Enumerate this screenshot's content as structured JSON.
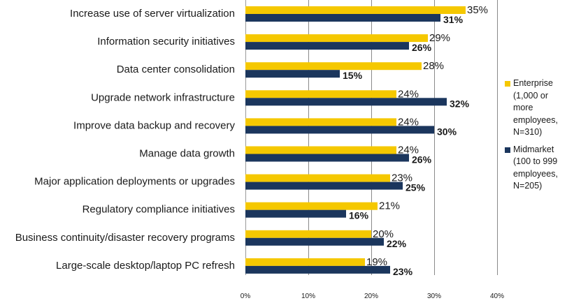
{
  "chart_data": {
    "type": "bar",
    "orientation": "horizontal",
    "categories": [
      "Increase use of server virtualization",
      "Information security initiatives",
      "Data center consolidation",
      "Upgrade network infrastructure",
      "Improve data backup and recovery",
      "Manage data growth",
      "Major application deployments or upgrades",
      "Regulatory compliance initiatives",
      "Business continuity/disaster recovery programs",
      "Large-scale desktop/laptop PC refresh"
    ],
    "series": [
      {
        "name": "Enterprise (1,000 or more employees, N=310)",
        "legend_lines": [
          "Enterprise",
          "(1,000 or",
          "more",
          "employees,",
          "N=310)"
        ],
        "color": "#F5C800",
        "values": [
          35,
          29,
          28,
          24,
          24,
          24,
          23,
          21,
          20,
          19
        ],
        "labels": [
          "35%",
          "29%",
          "28%",
          "24%",
          "24%",
          "24%",
          "23%",
          "21%",
          "20%",
          "19%"
        ]
      },
      {
        "name": "Midmarket (100 to 999 employees, N=205)",
        "legend_lines": [
          "Midmarket",
          "(100 to 999",
          "employees,",
          "N=205)"
        ],
        "color": "#1B365D",
        "values": [
          31,
          26,
          15,
          32,
          30,
          26,
          25,
          16,
          22,
          23
        ],
        "labels": [
          "31%",
          "26%",
          "15%",
          "32%",
          "30%",
          "26%",
          "25%",
          "16%",
          "22%",
          "23%"
        ]
      }
    ],
    "xlim": [
      0,
      40
    ],
    "xticks": [
      0,
      10,
      20,
      30,
      40
    ],
    "xtick_labels": [
      "0%",
      "10%",
      "20%",
      "30%",
      "40%"
    ],
    "grid": true,
    "legend_position": "right",
    "title": "",
    "xlabel": "",
    "ylabel": ""
  }
}
